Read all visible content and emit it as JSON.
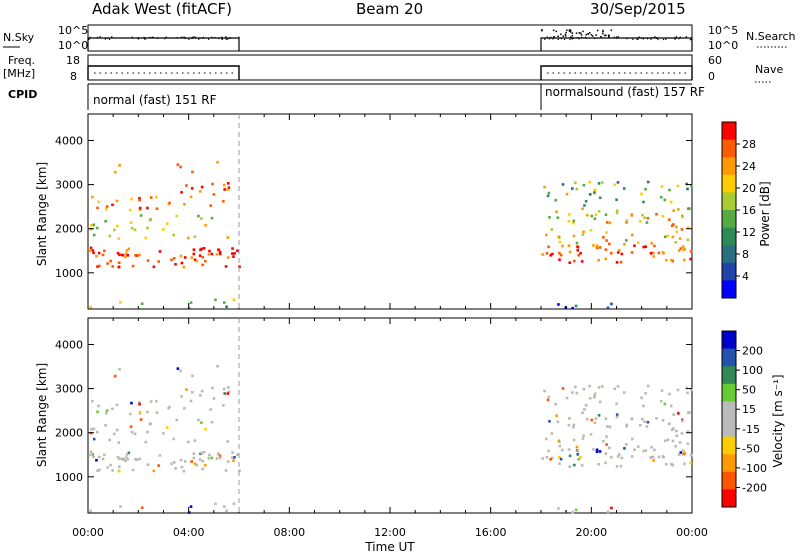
{
  "header": {
    "station": "Adak West (fitACF)",
    "beam": "Beam 20",
    "date": "30/Sep/2015"
  },
  "summary": {
    "nsky_label": "N.Sky",
    "nsearch_label": "N.Search",
    "freq_label_1": "Freq.",
    "freq_label_2": "[MHz]",
    "nave_label": "Nave",
    "cpid_label": "CPID",
    "nsky_ticks": [
      "10^5",
      "10^0"
    ],
    "freq_ticks": [
      "18",
      "8"
    ],
    "nave_ticks": [
      "60",
      "0"
    ],
    "cpid_segments": [
      {
        "start_hour": 0,
        "end_hour": 6,
        "label": "normal (fast) 151 RF"
      },
      {
        "start_hour": 18,
        "end_hour": 24,
        "label": "normalsound (fast) 157 RF"
      }
    ]
  },
  "chart_data": [
    {
      "type": "heatmap",
      "name": "power",
      "ylabel": "Slant Range [km]",
      "xlabel": "Time UT",
      "xlim": [
        0,
        24
      ],
      "ylim": [
        180,
        4600
      ],
      "x_ticks": [
        "00:00",
        "04:00",
        "08:00",
        "12:00",
        "16:00",
        "20:00",
        "00:00"
      ],
      "y_ticks": [
        "1000",
        "2000",
        "3000",
        "4000"
      ],
      "colorbar_label": "Power [dB]",
      "colorbar_ticks": [
        "28",
        "24",
        "20",
        "16",
        "12",
        "8",
        "4"
      ],
      "colorbar_colors": [
        "#ff0000",
        "#ff5a00",
        "#ff9900",
        "#ffcc00",
        "#aacc33",
        "#55aa44",
        "#2e8b57",
        "#2a6e80",
        "#2244aa",
        "#0000ff"
      ],
      "data_coverage_hours": [
        [
          0,
          6
        ],
        [
          18,
          24
        ]
      ]
    },
    {
      "type": "heatmap",
      "name": "velocity",
      "ylabel": "Slant Range [km]",
      "xlabel": "Time UT",
      "xlim": [
        0,
        24
      ],
      "ylim": [
        180,
        4600
      ],
      "x_ticks": [
        "00:00",
        "04:00",
        "08:00",
        "12:00",
        "16:00",
        "20:00",
        "00:00"
      ],
      "y_ticks": [
        "1000",
        "2000",
        "3000",
        "4000"
      ],
      "colorbar_label": "Velocity [m s⁻¹]",
      "colorbar_ticks": [
        "200",
        "100",
        "50",
        "15",
        "-15",
        "-50",
        "-100",
        "-200"
      ],
      "colorbar_colors": [
        "#0000cc",
        "#2255aa",
        "#338855",
        "#66cc33",
        "#bbbbbb",
        "#bbbbbb",
        "#ffcc00",
        "#ff9900",
        "#ff5500",
        "#ff0000"
      ],
      "data_coverage_hours": [
        [
          0,
          6
        ],
        [
          18,
          24
        ]
      ]
    }
  ],
  "colors": {
    "ground_scatter": "#bbbab2",
    "axis": "#000000",
    "dash": "#999999"
  }
}
